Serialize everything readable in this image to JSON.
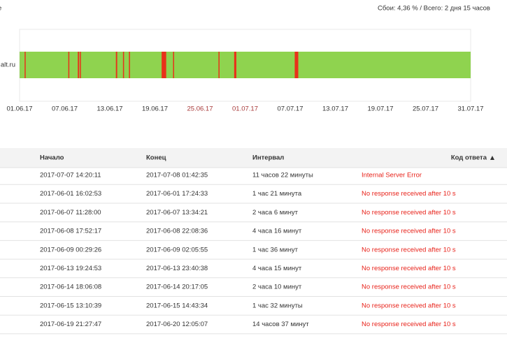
{
  "header": {
    "left": "е",
    "summary": "Сбои: 4,36 % / Всего: 2 дня 15 часов"
  },
  "chart_data": {
    "type": "timeline",
    "label": "alt.ru",
    "xlim": [
      "2017-06-01 00:00:00",
      "2017-07-31 00:00:00"
    ],
    "xticks": [
      "01.06.17",
      "07.06.17",
      "13.06.17",
      "19.06.17",
      "25.06.17",
      "01.07.17",
      "07.07.17",
      "13.07.17",
      "19.07.17",
      "25.07.17",
      "31.07.17"
    ],
    "up_color": "#8fd34f",
    "down_color": "#e8321a",
    "weekend_tick_color": "#a83a3a",
    "segments": [
      {
        "start": "2017-06-01 16:02:53",
        "end": "2017-06-01 17:24:33"
      },
      {
        "start": "2017-06-07 11:28:00",
        "end": "2017-06-07 13:34:21"
      },
      {
        "start": "2017-06-08 17:52:17",
        "end": "2017-06-08 22:08:36"
      },
      {
        "start": "2017-06-09 00:29:26",
        "end": "2017-06-09 02:05:55"
      },
      {
        "start": "2017-06-13 19:24:53",
        "end": "2017-06-13 23:40:38"
      },
      {
        "start": "2017-06-14 18:06:08",
        "end": "2017-06-14 20:17:05"
      },
      {
        "start": "2017-06-15 13:10:39",
        "end": "2017-06-15 14:43:34"
      },
      {
        "start": "2017-06-19 21:27:47",
        "end": "2017-06-20 12:05:07"
      },
      {
        "start": "2017-06-21 10:00:00",
        "end": "2017-06-21 13:00:00"
      },
      {
        "start": "2017-06-27 11:00:00",
        "end": "2017-06-27 13:00:00"
      },
      {
        "start": "2017-06-29 13:00:00",
        "end": "2017-06-29 20:00:00"
      },
      {
        "start": "2017-07-07 14:20:11",
        "end": "2017-07-08 01:42:35"
      }
    ]
  },
  "table": {
    "columns": [
      "Начало",
      "Конец",
      "Интервал",
      "Код ответа"
    ],
    "rows": [
      [
        "2017-07-07 14:20:11",
        "2017-07-08 01:42:35",
        "11 часов 22 минуты",
        "Internal Server Error"
      ],
      [
        "2017-06-01 16:02:53",
        "2017-06-01 17:24:33",
        "1 час 21 минута",
        "No response received after 10 s"
      ],
      [
        "2017-06-07 11:28:00",
        "2017-06-07 13:34:21",
        "2 часа 6 минут",
        "No response received after 10 s"
      ],
      [
        "2017-06-08 17:52:17",
        "2017-06-08 22:08:36",
        "4 часа 16 минут",
        "No response received after 10 s"
      ],
      [
        "2017-06-09 00:29:26",
        "2017-06-09 02:05:55",
        "1 час 36 минут",
        "No response received after 10 s"
      ],
      [
        "2017-06-13 19:24:53",
        "2017-06-13 23:40:38",
        "4 часа 15 минут",
        "No response received after 10 s"
      ],
      [
        "2017-06-14 18:06:08",
        "2017-06-14 20:17:05",
        "2 часа 10 минут",
        "No response received after 10 s"
      ],
      [
        "2017-06-15 13:10:39",
        "2017-06-15 14:43:34",
        "1 час 32 минуты",
        "No response received after 10 s"
      ],
      [
        "2017-06-19 21:27:47",
        "2017-06-20 12:05:07",
        "14 часов 37 минут",
        "No response received after 10 s"
      ]
    ],
    "error_color": "#e8221a"
  }
}
